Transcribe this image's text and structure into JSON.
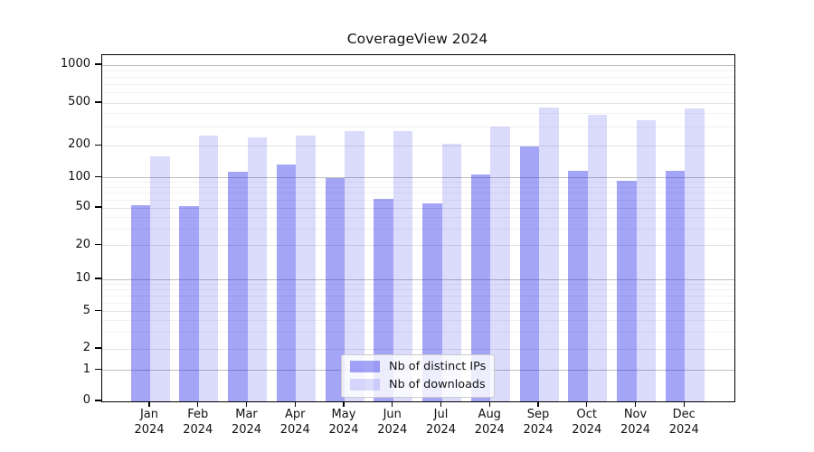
{
  "title": "CoverageView 2024",
  "chart_data": {
    "type": "bar",
    "title": "CoverageView 2024",
    "categories": [
      "Jan 2024",
      "Feb 2024",
      "Mar 2024",
      "Apr 2024",
      "May 2024",
      "Jun 2024",
      "Jul 2024",
      "Aug 2024",
      "Sep 2024",
      "Oct 2024",
      "Nov 2024",
      "Dec 2024"
    ],
    "series": [
      {
        "name": "Nb of distinct IPs",
        "color": "rgba(30,30,235,0.40)",
        "values": [
          53,
          52,
          114,
          133,
          100,
          62,
          56,
          108,
          196,
          116,
          94,
          117
        ]
      },
      {
        "name": "Nb of downloads",
        "color": "rgba(30,30,235,0.16)",
        "values": [
          160,
          248,
          240,
          250,
          275,
          275,
          208,
          300,
          455,
          388,
          345,
          445
        ]
      }
    ],
    "xlabel": "",
    "ylabel": "",
    "yscale": "symlog",
    "yticks": [
      0,
      1,
      2,
      5,
      10,
      20,
      50,
      100,
      200,
      500,
      1000
    ],
    "ylim": [
      0,
      1230
    ],
    "grid": true,
    "legend_position": "lower center"
  },
  "colors": {
    "grid_major": "#bdbdbd",
    "grid_mid": "#e4e4e4",
    "grid_minor": "#f2f2f2",
    "axis": "#000000"
  }
}
